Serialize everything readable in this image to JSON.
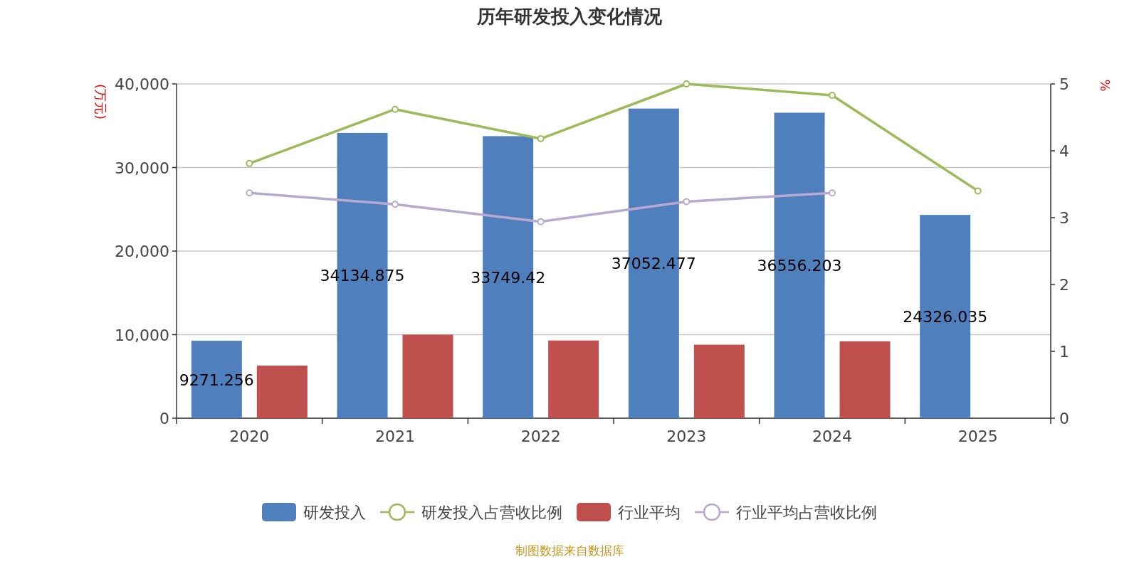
{
  "chart_data": {
    "type": "bar",
    "title": "历年研发投入变化情况",
    "ylabel": "(万元)",
    "y2label": "%",
    "categories": [
      "2020",
      "2021",
      "2022",
      "2023",
      "2024",
      "2025"
    ],
    "series": [
      {
        "name": "研发投入",
        "color": "#4f7fbd",
        "values": [
          9271.256,
          34134.875,
          33749.42,
          37052.477,
          36556.203,
          24326.035
        ],
        "value_labels": [
          "9271.256",
          "34134.875",
          "33749.42",
          "37052.477",
          "36556.203",
          "24326.035"
        ]
      },
      {
        "name": "研发投入占营收比例",
        "type": "line",
        "axis": "y2",
        "color": "#9bbb59",
        "marker": "circle",
        "values": [
          3.81,
          4.62,
          4.18,
          5.0,
          4.83,
          3.4
        ]
      },
      {
        "name": "行业平均",
        "color": "#c0504d",
        "values": [
          6300,
          10000,
          9300,
          8800,
          9200,
          null
        ]
      },
      {
        "name": "行业平均占营收比例",
        "type": "line",
        "axis": "y2",
        "color": "#b7a9cf",
        "marker": "circle",
        "values": [
          3.37,
          3.2,
          2.94,
          3.24,
          3.37,
          null
        ]
      }
    ],
    "ylim": [
      0,
      40000
    ],
    "yticks": [
      0,
      {
        "value": 10000,
        "label": "10,000"
      },
      {
        "value": 20000,
        "label": "20,000"
      },
      {
        "value": 30000,
        "label": "30,000"
      },
      {
        "value": 40000,
        "label": "40,000"
      }
    ],
    "y2lim": [
      0,
      5
    ],
    "y2ticks": [
      0,
      1,
      2,
      3,
      4,
      5
    ],
    "grid": "y",
    "legend": "bottom",
    "annotations": [
      "制图数据来自数据库"
    ]
  }
}
